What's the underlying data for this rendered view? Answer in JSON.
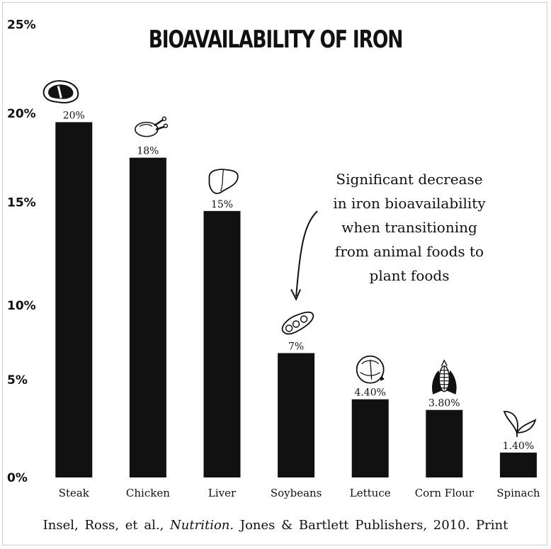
{
  "chart_data": {
    "type": "bar",
    "title": "BIOAVAILABILITY OF IRON",
    "categories": [
      "Steak",
      "Chicken",
      "Liver",
      "Soybeans",
      "Lettuce",
      "Corn Flour",
      "Spinach"
    ],
    "values": [
      20,
      18,
      15,
      7,
      4.4,
      3.8,
      1.4
    ],
    "data_labels": [
      "20%",
      "18%",
      "15%",
      "7%",
      "4.40%",
      "3.80%",
      "1.40%"
    ],
    "y_ticks": [
      {
        "value": 0,
        "label": "0%"
      },
      {
        "value": 5.5,
        "label": "5%"
      },
      {
        "value": 9.7,
        "label": "10%"
      },
      {
        "value": 15.5,
        "label": "15%"
      },
      {
        "value": 20.5,
        "label": "20%"
      },
      {
        "value": 25.5,
        "label": "25%"
      }
    ],
    "ylim": [
      0,
      26
    ],
    "grid": false,
    "bar_color": "#111111",
    "icons": [
      "steak-icon",
      "chicken-icon",
      "liver-icon",
      "soybean-icon",
      "lettuce-icon",
      "corn-icon",
      "spinach-icon"
    ],
    "annotation": {
      "lines": [
        "Significant decrease",
        "in iron bioavailability",
        "when transitioning",
        "from animal foods to",
        "plant foods"
      ],
      "arrow_target": "Soybeans"
    }
  },
  "citation": {
    "authors": "Insel, Ross, et al.,",
    "work": "Nutrition.",
    "publisher": "Jones & Bartlett Publishers, 2010. Print"
  }
}
